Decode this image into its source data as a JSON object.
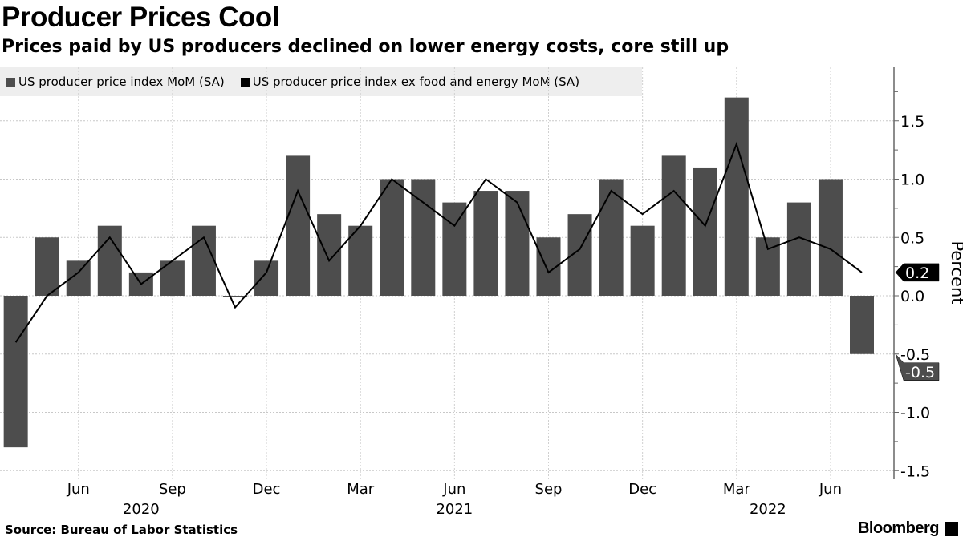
{
  "chart_data": {
    "type": "bar",
    "title": "Producer Prices Cool",
    "subtitle": "Prices paid by US producers declined on lower energy costs, core still up",
    "ylabel": "Percent",
    "ylim": [
      -1.5,
      1.9
    ],
    "yticks": [
      "1.5",
      "1.0",
      "0.5",
      "0.0",
      "-0.5",
      "-1.0",
      "-1.5"
    ],
    "ytick_values": [
      1.5,
      1.0,
      0.5,
      0.0,
      -0.5,
      -1.0,
      -1.5
    ],
    "grid": true,
    "legend_position": "top-left",
    "x": [
      "2020-04",
      "2020-05",
      "2020-06",
      "2020-07",
      "2020-08",
      "2020-09",
      "2020-10",
      "2020-11",
      "2020-12",
      "2021-01",
      "2021-02",
      "2021-03",
      "2021-04",
      "2021-05",
      "2021-06",
      "2021-07",
      "2021-08",
      "2021-09",
      "2021-10",
      "2021-11",
      "2021-12",
      "2022-01",
      "2022-02",
      "2022-03",
      "2022-04",
      "2022-05",
      "2022-06",
      "2022-07"
    ],
    "xtick_labels": [
      {
        "label": "Jun",
        "index": 2
      },
      {
        "label": "Sep",
        "index": 5
      },
      {
        "label": "Dec",
        "index": 8
      },
      {
        "label": "Mar",
        "index": 11
      },
      {
        "label": "Jun",
        "index": 14
      },
      {
        "label": "Sep",
        "index": 17
      },
      {
        "label": "Dec",
        "index": 20
      },
      {
        "label": "Mar",
        "index": 23
      },
      {
        "label": "Jun",
        "index": 26
      }
    ],
    "year_labels": [
      {
        "label": "2020",
        "index": 4
      },
      {
        "label": "2021",
        "index": 14
      },
      {
        "label": "2022",
        "index": 24
      }
    ],
    "series": [
      {
        "name": "US producer price index MoM (SA)",
        "kind": "bar",
        "color": "#4d4d4d",
        "values": [
          -1.3,
          0.5,
          0.3,
          0.6,
          0.2,
          0.3,
          0.6,
          0.0,
          0.3,
          1.2,
          0.7,
          0.6,
          1.0,
          1.0,
          0.8,
          0.9,
          0.9,
          0.5,
          0.7,
          1.0,
          0.6,
          1.2,
          1.1,
          1.7,
          0.5,
          0.8,
          1.0,
          -0.5
        ],
        "last_label": "-0.5"
      },
      {
        "name": "US producer price index ex food and energy MoM (SA)",
        "kind": "line",
        "color": "#000000",
        "values": [
          -0.4,
          0.0,
          0.2,
          0.5,
          0.1,
          0.3,
          0.5,
          -0.1,
          0.2,
          0.9,
          0.3,
          0.6,
          1.0,
          0.8,
          0.6,
          1.0,
          0.8,
          0.2,
          0.4,
          0.9,
          0.7,
          0.9,
          0.6,
          1.3,
          0.4,
          0.5,
          0.4,
          0.2
        ],
        "last_label": "0.2"
      }
    ]
  },
  "footer": {
    "source": "Source: Bureau of Labor Statistics",
    "brand": "Bloomberg"
  }
}
